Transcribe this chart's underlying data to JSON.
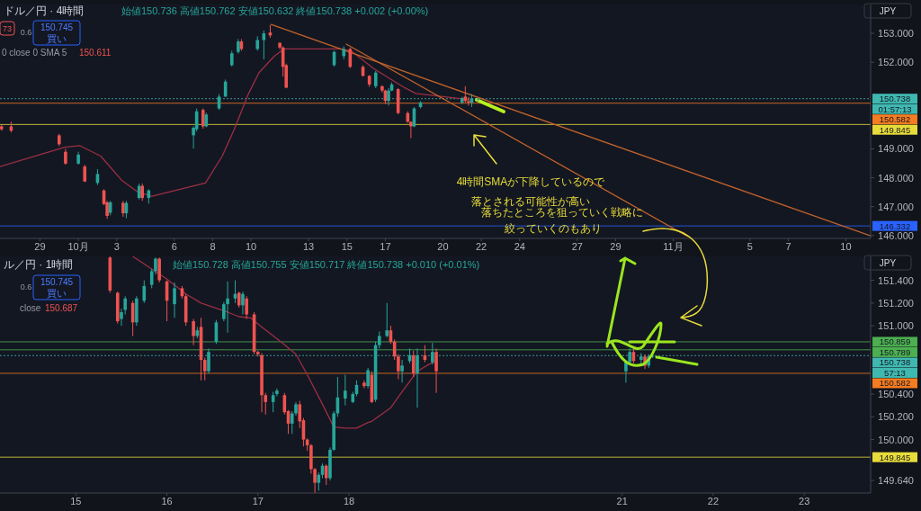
{
  "chart_data": [
    {
      "type": "candlestick",
      "annotations": [
        "ドル／円 · 4時間",
        "始値150.736  高値150.762  安値150.632  終値150.738  +0.002 (+0.00%)",
        "0.6",
        "150.745",
        "買い",
        "0 close 0 SMA 5",
        "150.611",
        "01:57:13",
        "JPY",
        "4時間SMAが下降しているので",
        "落とされる可能性が高い",
        "落ちたところを狙っていく戦略に",
        "絞っていくのもあり",
        "73"
      ],
      "x": [
        "--09-27T00:00",
        "--09-27T12:00",
        "--09-30T00:00",
        "--09-30T08:00",
        "--10-01T00:00",
        "--10-01T08:00",
        "--10-02T00:00",
        "--10-02T08:00",
        "--10-02T12:00",
        "--10-02T16:00",
        "--10-03T08:00",
        "--10-03T12:00",
        "--10-04T04:00",
        "--10-04T08:00",
        "--10-04T16:00",
        "--10-07T00:00",
        "--10-07T04:00",
        "--10-07T12:00",
        "--10-07T16:00",
        "--10-08T08:00",
        "--10-08T16:00",
        "--10-09T00:00",
        "--10-09T08:00",
        "--10-09T12:00",
        "--10-10T08:00",
        "--10-10T16:00",
        "--10-11T00:00",
        "--10-11T12:00",
        "--10-11T16:00",
        "--10-11T20:00",
        "--10-14T08:00",
        "--10-14T20:00",
        "--10-15T04:00",
        "--10-15T20:00",
        "--10-16T04:00",
        "--10-16T12:00",
        "--10-16T20:00",
        "--10-17T00:00",
        "--10-17T04:00",
        "--10-17T08:00",
        "--10-17T16:00",
        "--10-18T04:00",
        "--10-18T08:00",
        "--10-18T12:00",
        "--10-18T20:00",
        "--10-21T00:00",
        "--10-21T04:00",
        "--10-21T08:00",
        "--10-21T12:00",
        "--10-21T20:00"
      ],
      "ohlc": [
        [
          149.78,
          149.83,
          149.63,
          149.68
        ],
        [
          149.78,
          149.94,
          149.57,
          149.63
        ],
        [
          149.47,
          149.52,
          149.1,
          149.16
        ],
        [
          148.9,
          149.0,
          148.45,
          148.49
        ],
        [
          148.49,
          148.9,
          148.45,
          148.8
        ],
        [
          148.39,
          148.45,
          147.85,
          147.87
        ],
        [
          147.82,
          148.3,
          147.75,
          148.13
        ],
        [
          147.56,
          147.6,
          147.05,
          147.09
        ],
        [
          147.15,
          147.2,
          146.58,
          146.68
        ],
        [
          146.79,
          147.2,
          146.7,
          147.15
        ],
        [
          147.13,
          147.2,
          146.65,
          146.77
        ],
        [
          146.77,
          147.2,
          146.6,
          147.13
        ],
        [
          147.3,
          147.8,
          147.25,
          147.72
        ],
        [
          147.72,
          147.8,
          147.2,
          147.3
        ],
        [
          147.3,
          147.6,
          147.1,
          147.56
        ],
        [
          149.47,
          149.78,
          149.01,
          149.73
        ],
        [
          149.68,
          150.4,
          149.6,
          150.3
        ],
        [
          150.35,
          150.4,
          149.7,
          149.78
        ],
        [
          149.78,
          150.25,
          149.75,
          150.19
        ],
        [
          150.4,
          150.9,
          150.35,
          150.81
        ],
        [
          150.81,
          151.4,
          150.8,
          151.33
        ],
        [
          151.9,
          152.4,
          151.85,
          152.31
        ],
        [
          152.36,
          152.8,
          152.3,
          152.72
        ],
        [
          152.72,
          152.8,
          152.4,
          152.46
        ],
        [
          152.46,
          152.9,
          152.4,
          152.77
        ],
        [
          152.77,
          153.1,
          152.1,
          153.0
        ],
        [
          153.03,
          153.29,
          152.85,
          152.93
        ],
        [
          152.67,
          152.7,
          152.45,
          152.51
        ],
        [
          152.51,
          152.55,
          151.5,
          151.84
        ],
        [
          151.9,
          151.95,
          151.1,
          151.12
        ],
        [
          151.9,
          152.4,
          151.85,
          152.36
        ],
        [
          152.21,
          152.55,
          152.1,
          152.46
        ],
        [
          152.46,
          152.5,
          151.8,
          151.84
        ],
        [
          151.84,
          151.9,
          151.5,
          151.53
        ],
        [
          151.53,
          151.55,
          151.15,
          151.23
        ],
        [
          151.17,
          151.7,
          151.1,
          151.64
        ],
        [
          151.17,
          151.2,
          150.95,
          151.02
        ],
        [
          151.02,
          151.05,
          150.55,
          150.66
        ],
        [
          150.66,
          151.1,
          150.5,
          151.02
        ],
        [
          151.02,
          151.3,
          151.0,
          151.23
        ],
        [
          151.07,
          151.1,
          150.2,
          150.24
        ],
        [
          150.24,
          150.3,
          149.9,
          149.94
        ],
        [
          149.94,
          149.95,
          149.37,
          149.78
        ],
        [
          149.78,
          150.45,
          149.75,
          150.4
        ],
        [
          150.45,
          150.65,
          150.4,
          150.61
        ],
        [
          150.61,
          150.8,
          150.55,
          150.76
        ],
        [
          150.81,
          151.17,
          150.6,
          150.66
        ],
        [
          150.66,
          150.8,
          150.5,
          150.61
        ],
        [
          150.6,
          150.9,
          150.45,
          150.75
        ],
        [
          150.736,
          150.762,
          150.632,
          150.738
        ]
      ],
      "series": [
        {
          "type": "line",
          "color": "#9c2f43",
          "x": [
            "--09-26T22:00",
            "--09-30T07:00",
            "--10-01T02:00",
            "--10-02T04:00",
            "--10-03T06:00",
            "--10-04T02:00",
            "--10-04T20:00",
            "--10-07T15:00",
            "--10-08T12:00",
            "--10-09T03:00",
            "--10-09T21:00",
            "--10-10T10:00",
            "--10-11T05:00",
            "--10-11T17:00",
            "--10-14T18:00",
            "--10-15T07:00",
            "--10-16T09:00",
            "--10-18T00:00",
            "--10-18T14:00",
            "--10-21T08:00"
          ],
          "values": [
            148.39,
            149.06,
            149.11,
            148.75,
            147.92,
            147.51,
            147.36,
            147.82,
            148.75,
            149.68,
            150.92,
            151.64,
            152.21,
            152.46,
            152.46,
            152.36,
            151.79,
            151.12,
            150.92,
            150.71
          ]
        },
        {
          "type": "line",
          "color": "#c0622a",
          "x": [
            "--10-11T01:00",
            "--11-11T07:00"
          ],
          "values": [
            153.31,
            145.99
          ]
        },
        {
          "type": "line",
          "color": "#c0622a",
          "x": [
            "--10-14T23:00",
            "--11-01T18:00"
          ],
          "values": [
            152.63,
            145.97
          ]
        }
      ],
      "xlim": [
        "--09-26T22:00",
        "--11-11T07:00"
      ],
      "ylim": [
        145.9,
        154.0
      ],
      "xticks": [
        {
          "value": "--09-29",
          "label": "29"
        },
        {
          "value": "--10-01",
          "label": "10月"
        },
        {
          "value": "--10-03",
          "label": "3"
        },
        {
          "value": "--10-06",
          "label": "6"
        },
        {
          "value": "--10-08",
          "label": "8"
        },
        {
          "value": "--10-10",
          "label": "10"
        },
        {
          "value": "--10-13",
          "label": "13"
        },
        {
          "value": "--10-15",
          "label": "15"
        },
        {
          "value": "--10-17",
          "label": "17"
        },
        {
          "value": "--10-20",
          "label": "20"
        },
        {
          "value": "--10-22",
          "label": "22"
        },
        {
          "value": "--10-24",
          "label": "24"
        },
        {
          "value": "--10-27",
          "label": "27"
        },
        {
          "value": "--10-29",
          "label": "29"
        },
        {
          "value": "--11-01",
          "label": "11月"
        },
        {
          "value": "--11-05",
          "label": "5"
        },
        {
          "value": "--11-07",
          "label": "7"
        },
        {
          "value": "--11-10",
          "label": "10"
        }
      ],
      "yticks": [
        {
          "value": 146,
          "label": "146.000"
        },
        {
          "value": 147,
          "label": "147.000"
        },
        {
          "value": 148,
          "label": "148.000"
        },
        {
          "value": 149,
          "label": "149.000"
        },
        {
          "value": 152,
          "label": "152.000"
        },
        {
          "value": 153,
          "label": "153.000"
        }
      ],
      "ref_lines": [
        {
          "axis": "y",
          "value": 150.738,
          "label": "150.738",
          "color": "#3fb8b0",
          "line_style": "dotted"
        },
        {
          "axis": "y",
          "value": 150.582,
          "label": "150.582",
          "color": "#f57c20"
        },
        {
          "axis": "y",
          "value": 149.845,
          "label": "149.845",
          "color": "#e8dc3a"
        },
        {
          "axis": "y",
          "value": 146.332,
          "label": "146.332",
          "color": "#2962ff"
        }
      ]
    },
    {
      "type": "candlestick",
      "annotations": [
        "ル／円 · 1時間",
        "始値150.728  高値150.755  安値150.717  終値150.738  +0.010 (+0.01%)",
        "0.6",
        "150.745",
        "買い",
        "close",
        "150.687",
        "57:13",
        "JPY"
      ],
      "x": [
        "--10-15T09:00",
        "--10-15T11:00",
        "--10-15T12:00",
        "--10-15T13:00",
        "--10-15T15:00",
        "--10-15T16:00",
        "--10-15T18:00",
        "--10-15T20:00",
        "--10-15T21:00",
        "--10-15T22:00",
        "--10-16T00:00",
        "--10-16T02:00",
        "--10-16T04:00",
        "--10-16T05:00",
        "--10-16T07:00",
        "--10-16T08:00",
        "--10-16T09:00",
        "--10-16T10:00",
        "--10-16T11:00",
        "--10-16T13:00",
        "--10-16T15:00",
        "--10-16T16:00",
        "--10-16T18:00",
        "--10-16T19:00",
        "--10-16T20:00",
        "--10-16T21:00",
        "--10-16T23:00",
        "--10-17T00:00",
        "--10-17T01:00",
        "--10-17T02:00",
        "--10-17T04:00",
        "--10-17T05:00",
        "--10-17T07:00",
        "--10-17T08:00",
        "--10-17T09:00",
        "--10-17T10:00",
        "--10-17T11:00",
        "--10-17T12:00",
        "--10-17T13:00",
        "--10-17T14:00",
        "--10-17T15:00",
        "--10-17T16:00",
        "--10-17T17:00",
        "--10-17T18:00",
        "--10-17T19:00",
        "--10-17T20:00",
        "--10-17T21:00",
        "--10-17T23:00",
        "--10-18T01:00",
        "--10-18T02:00",
        "--10-18T04:00",
        "--10-18T05:00",
        "--10-18T06:00",
        "--10-18T07:00",
        "--10-18T08:00",
        "--10-18T10:00",
        "--10-18T11:00",
        "--10-18T12:00",
        "--10-18T13:00",
        "--10-18T14:00",
        "--10-18T16:00",
        "--10-18T17:00",
        "--10-18T18:00",
        "--10-18T20:00",
        "--10-18T22:00",
        "--10-18T23:00",
        "--10-21T01:00",
        "--10-21T02:00",
        "--10-21T03:00",
        "--10-21T05:00",
        "--10-21T06:00",
        "--10-21T07:00",
        "--10-21T08:00"
      ],
      "ohlc": [
        [
          151.6,
          151.62,
          151.29,
          151.31
        ],
        [
          151.29,
          151.3,
          151.02,
          151.04
        ],
        [
          151.06,
          151.15,
          151.0,
          151.12
        ],
        [
          151.14,
          151.26,
          151.1,
          151.24
        ],
        [
          151.2,
          151.22,
          150.91,
          151.03
        ],
        [
          151.03,
          151.26,
          151.0,
          151.24
        ],
        [
          151.22,
          151.4,
          151.2,
          151.35
        ],
        [
          151.36,
          151.5,
          151.33,
          151.48
        ],
        [
          151.48,
          151.6,
          151.45,
          151.59
        ],
        [
          151.59,
          151.6,
          151.38,
          151.4
        ],
        [
          151.39,
          151.4,
          151.04,
          151.22
        ],
        [
          151.19,
          151.38,
          151.07,
          151.33
        ],
        [
          151.33,
          151.35,
          151.24,
          151.26
        ],
        [
          151.26,
          151.28,
          151.0,
          151.03
        ],
        [
          151.04,
          151.06,
          150.83,
          150.91
        ],
        [
          150.91,
          150.99,
          150.89,
          150.96
        ],
        [
          150.99,
          151.07,
          150.52,
          150.7
        ],
        [
          150.7,
          150.72,
          150.52,
          150.6
        ],
        [
          150.6,
          150.8,
          150.58,
          150.77
        ],
        [
          150.86,
          151.05,
          150.84,
          151.03
        ],
        [
          151.06,
          151.21,
          151.04,
          151.19
        ],
        [
          151.19,
          151.39,
          150.94,
          151.24
        ],
        [
          151.24,
          151.4,
          151.2,
          151.28
        ],
        [
          151.29,
          151.3,
          151.16,
          151.18
        ],
        [
          151.18,
          151.3,
          151.1,
          151.28
        ],
        [
          151.24,
          151.26,
          151.06,
          151.1
        ],
        [
          151.1,
          151.12,
          150.75,
          150.77
        ],
        [
          150.77,
          150.78,
          150.73,
          150.75
        ],
        [
          150.74,
          150.76,
          150.24,
          150.39
        ],
        [
          150.39,
          150.41,
          150.22,
          150.33
        ],
        [
          150.33,
          150.42,
          150.24,
          150.39
        ],
        [
          150.4,
          150.45,
          150.38,
          150.43
        ],
        [
          150.39,
          150.41,
          150.22,
          150.24
        ],
        [
          150.25,
          150.26,
          150.05,
          150.14
        ],
        [
          150.14,
          150.25,
          150.05,
          150.23
        ],
        [
          150.23,
          150.33,
          150.21,
          150.31
        ],
        [
          150.31,
          150.34,
          150.1,
          150.16
        ],
        [
          150.17,
          150.19,
          149.94,
          150.0
        ],
        [
          150.0,
          150.01,
          149.9,
          149.95
        ],
        [
          149.95,
          149.96,
          149.7,
          149.74
        ],
        [
          149.74,
          149.75,
          149.53,
          149.62
        ],
        [
          149.62,
          149.71,
          149.55,
          149.69
        ],
        [
          149.69,
          149.79,
          149.66,
          149.77
        ],
        [
          149.77,
          149.78,
          149.6,
          149.66
        ],
        [
          149.66,
          149.93,
          149.64,
          149.91
        ],
        [
          149.91,
          150.25,
          149.9,
          150.23
        ],
        [
          150.23,
          150.55,
          150.2,
          150.37
        ],
        [
          150.36,
          150.57,
          150.3,
          150.43
        ],
        [
          150.33,
          150.42,
          150.32,
          150.4
        ],
        [
          150.4,
          150.52,
          150.38,
          150.48
        ],
        [
          150.5,
          150.52,
          150.45,
          150.47
        ],
        [
          150.47,
          150.63,
          150.45,
          150.61
        ],
        [
          150.57,
          150.6,
          150.32,
          150.33
        ],
        [
          150.35,
          150.86,
          150.33,
          150.83
        ],
        [
          150.83,
          150.95,
          150.8,
          150.91
        ],
        [
          150.91,
          151.2,
          150.9,
          150.96
        ],
        [
          150.96,
          151.0,
          150.84,
          150.86
        ],
        [
          150.86,
          150.88,
          150.7,
          150.73
        ],
        [
          150.73,
          150.75,
          150.53,
          150.6
        ],
        [
          150.6,
          150.7,
          150.5,
          150.65
        ],
        [
          150.69,
          150.8,
          150.67,
          150.74
        ],
        [
          150.74,
          150.78,
          150.55,
          150.58
        ],
        [
          150.58,
          150.8,
          150.28,
          150.74
        ],
        [
          150.74,
          150.83,
          150.68,
          150.7
        ],
        [
          150.68,
          150.85,
          150.66,
          150.77
        ],
        [
          150.77,
          150.8,
          150.41,
          150.6
        ],
        [
          150.6,
          150.7,
          150.5,
          150.68
        ],
        [
          150.68,
          150.8,
          150.65,
          150.77
        ],
        [
          150.77,
          150.82,
          150.67,
          150.69
        ],
        [
          150.7,
          150.76,
          150.66,
          150.73
        ],
        [
          150.73,
          150.75,
          150.62,
          150.65
        ],
        [
          150.65,
          150.75,
          150.63,
          150.73
        ],
        [
          150.728,
          150.755,
          150.717,
          150.738
        ]
      ],
      "series": [
        {
          "type": "line",
          "color": "#9c2f43",
          "x": [
            "--10-15T15:00",
            "--10-16T00:00",
            "--10-16T05:00",
            "--10-16T09:00",
            "--10-16T16:00",
            "--10-16T19:00",
            "--10-16T22:00",
            "--10-17T01:00",
            "--10-17T06:00",
            "--10-17T10:00",
            "--10-17T13:00",
            "--10-17T17:00",
            "--10-17T20:00",
            "--10-17T23:00",
            "--10-18T02:00",
            "--10-18T05:00",
            "--10-18T06:00",
            "--10-18T11:00",
            "--10-18T14:00",
            "--10-18T18:00",
            "--10-18T21:00",
            "--10-18T23:00"
          ],
          "values": [
            151.61,
            151.41,
            151.28,
            151.2,
            151.12,
            151.08,
            151.07,
            150.99,
            150.86,
            150.75,
            150.57,
            150.31,
            150.11,
            150.1,
            150.1,
            150.15,
            150.16,
            150.28,
            150.42,
            150.6,
            150.66,
            150.69
          ]
        }
      ],
      "xlim": [
        "--10-14T04:00",
        "--10-23T17:30"
      ],
      "ylim": [
        149.53,
        151.61
      ],
      "xticks": [
        {
          "value": "--10-15",
          "label": "15"
        },
        {
          "value": "--10-16",
          "label": "16"
        },
        {
          "value": "--10-17",
          "label": "17"
        },
        {
          "value": "--10-18",
          "label": "18"
        },
        {
          "value": "--10-21",
          "label": "21"
        },
        {
          "value": "--10-22",
          "label": "22"
        },
        {
          "value": "--10-23",
          "label": "23"
        }
      ],
      "yticks": [
        {
          "value": 149.64,
          "label": "149.640"
        },
        {
          "value": 150.0,
          "label": "150.000"
        },
        {
          "value": 150.2,
          "label": "150.200"
        },
        {
          "value": 150.4,
          "label": "150.400"
        },
        {
          "value": 151.0,
          "label": "151.000"
        },
        {
          "value": 151.2,
          "label": "151.200"
        },
        {
          "value": 151.4,
          "label": "151.400"
        }
      ],
      "ref_lines": [
        {
          "axis": "y",
          "value": 150.859,
          "label": "150.859",
          "color": "#4caf50"
        },
        {
          "axis": "y",
          "value": 150.789,
          "label": "150.789",
          "color": "#4caf50"
        },
        {
          "axis": "y",
          "value": 150.738,
          "label": "150.738",
          "color": "#3fb8b0",
          "line_style": "dotted"
        },
        {
          "axis": "y",
          "value": 150.582,
          "label": "150.582",
          "color": "#f57c20"
        },
        {
          "axis": "y",
          "value": 149.845,
          "label": "149.845",
          "color": "#e8dc3a"
        }
      ]
    }
  ]
}
